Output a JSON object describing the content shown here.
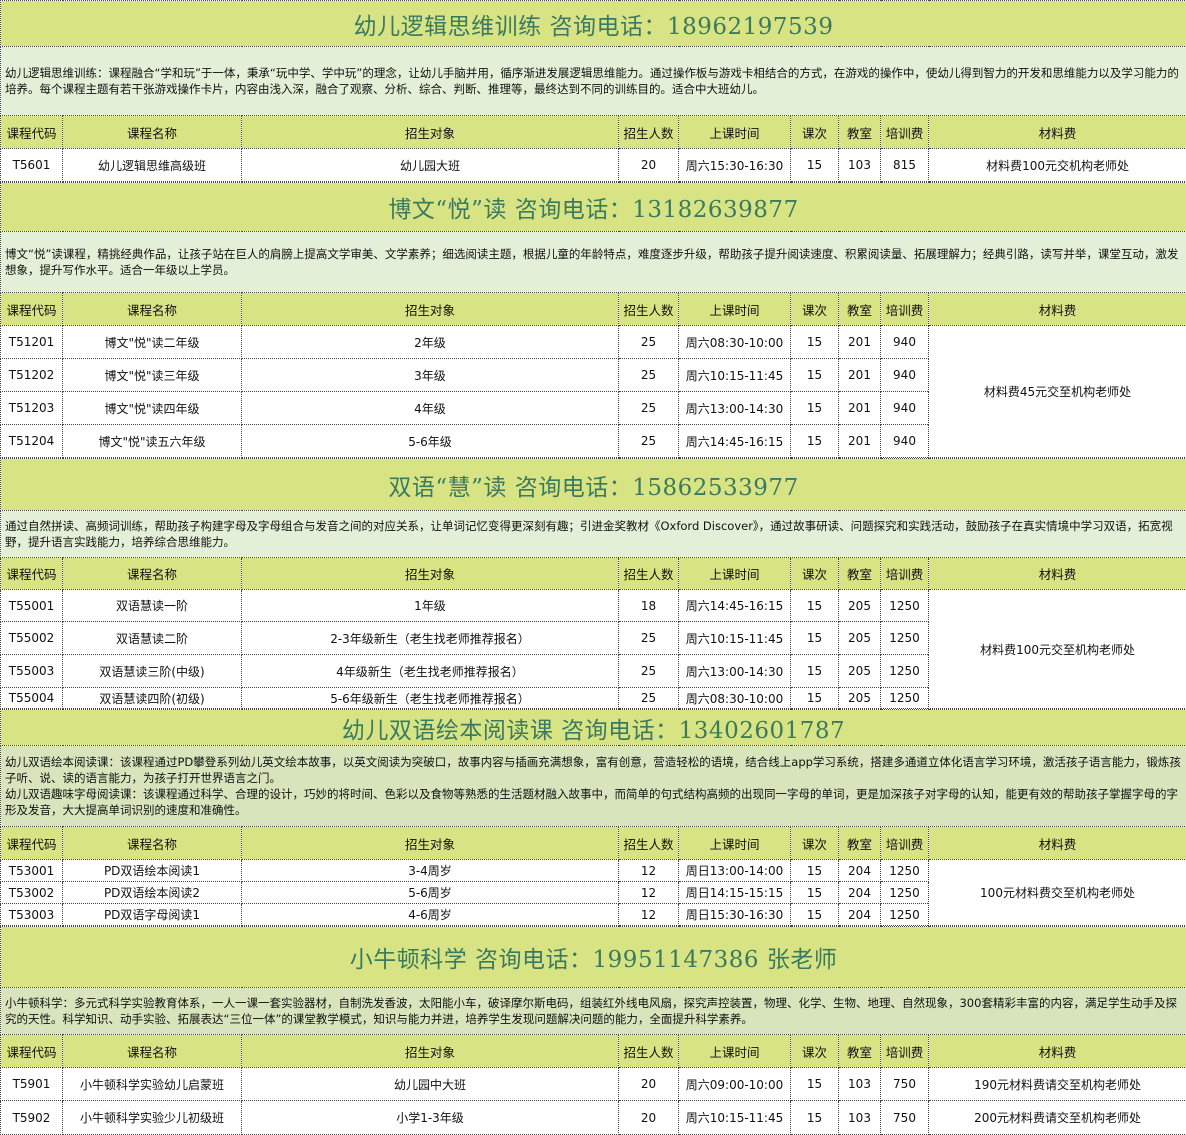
{
  "columns": [
    "课程代码",
    "课程名称",
    "招生对象",
    "招生人数",
    "上课时间",
    "课次",
    "教室",
    "培训费",
    "材料费"
  ],
  "colors": {
    "title_bar": "#d8e484",
    "title_text": "#3a7a60",
    "desc_bg_light": "#e3efd6",
    "desc_bg_dark": "#d8e4bc",
    "header_bg": "#d8e484"
  },
  "sections": [
    {
      "title": "幼儿逻辑思维训练  咨询电话：18962197539",
      "description": [
        "幼儿逻辑思维训练：课程融合“学和玩”于一体，秉承“玩中学、学中玩”的理念，让幼儿手脑并用，循序渐进发展逻辑思维能力。通过操作板与游戏卡相结合的方式，在游戏的操作中，使幼儿得到智力的开发和思维能力以及学习能力的培养。每个课程主题有若干张游戏操作卡片，内容由浅入深，融合了观察、分析、综合、判断、推理等，最终达到不同的训练目的。适合中大班幼儿。"
      ],
      "rows": [
        [
          "T5601",
          "幼儿逻辑思维高级班",
          "幼儿园大班",
          "20",
          "周六15:30-16:30",
          "15",
          "103",
          "815"
        ]
      ],
      "material_fee": "材料费100元交机构老师处"
    },
    {
      "title": "博文“悦”读   咨询电话：13182639877",
      "description": [
        "博文“悦”读课程，精挑经典作品，让孩子站在巨人的肩膀上提高文学审美、文学素养；细选阅读主题，根据儿童的年龄特点，难度逐步升级，帮助孩子提升阅读速度、积累阅读量、拓展理解力；经典引路，读写并举，课堂互动，激发想象，提升写作水平。适合一年级以上学员。"
      ],
      "rows": [
        [
          "T51201",
          "博文\"悦\"读二年级",
          "2年级",
          "25",
          "周六08:30-10:00",
          "15",
          "201",
          "940"
        ],
        [
          "T51202",
          "博文\"悦\"读三年级",
          "3年级",
          "25",
          "周六10:15-11:45",
          "15",
          "201",
          "940"
        ],
        [
          "T51203",
          "博文\"悦\"读四年级",
          "4年级",
          "25",
          "周六13:00-14:30",
          "15",
          "201",
          "940"
        ],
        [
          "T51204",
          "博文\"悦\"读五六年级",
          "5-6年级",
          "25",
          "周六14:45-16:15",
          "15",
          "201",
          "940"
        ]
      ],
      "material_fee": "材料费45元交至机构老师处"
    },
    {
      "title": "双语“慧”读  咨询电话：15862533977",
      "description": [
        "通过自然拼读、高频词训练，帮助孩子构建字母及字母组合与发音之间的对应关系，让单词记忆变得更深刻有趣；引进金奖教材《Oxford Discover》，通过故事研读、问题探究和实践活动，鼓励孩子在真实情境中学习双语，拓宽视野，提升语言实践能力，培养综合思维能力。"
      ],
      "rows": [
        [
          "T55001",
          "双语慧读一阶",
          "1年级",
          "18",
          "周六14:45-16:15",
          "15",
          "205",
          "1250"
        ],
        [
          "T55002",
          "双语慧读二阶",
          "2-3年级新生（老生找老师推荐报名）",
          "25",
          "周六10:15-11:45",
          "15",
          "205",
          "1250"
        ],
        [
          "T55003",
          "双语慧读三阶(中级)",
          "4年级新生（老生找老师推荐报名）",
          "25",
          "周六13:00-14:30",
          "15",
          "205",
          "1250"
        ],
        [
          "T55004",
          "双语慧读四阶(初级)",
          "5-6年级新生（老生找老师推荐报名）",
          "25",
          "周六08:30-10:00",
          "15",
          "205",
          "1250"
        ]
      ],
      "material_fee": "材料费100元交至机构老师处"
    },
    {
      "title": "幼儿双语绘本阅读课  咨询电话：13402601787",
      "description": [
        "幼儿双语绘本阅读课：该课程通过PD攀登系列幼儿英文绘本故事，以英文阅读为突破口，故事内容与插画充满想象，富有创意，营造轻松的语境，结合线上app学习系统，搭建多通道立体化语言学习环境，激活孩子语言能力，锻炼孩子听、说、读的语言能力，为孩子打开世界语言之门。",
        "幼儿双语趣味字母阅读课：该课程通过科学、合理的设计，巧妙的将时间、色彩以及食物等熟悉的生活题材融入故事中，而简单的句式结构高频的出现同一字母的单词，更是加深孩子对字母的认知，能更有效的帮助孩子掌握字母的字形及发音，大大提高单词识别的速度和准确性。"
      ],
      "rows": [
        [
          "T53001",
          "PD双语绘本阅读1",
          "3-4周岁",
          "12",
          "周日13:00-14:00",
          "15",
          "204",
          "1250"
        ],
        [
          "T53002",
          "PD双语绘本阅读2",
          "5-6周岁",
          "12",
          "周日14:15-15:15",
          "15",
          "204",
          "1250"
        ],
        [
          "T53003",
          "PD双语字母阅读1",
          "4-6周岁",
          "12",
          "周日15:30-16:30",
          "15",
          "204",
          "1250"
        ]
      ],
      "material_fee": "100元材料费交至机构老师处"
    },
    {
      "title": "小牛顿科学  咨询电话：19951147386  张老师",
      "description": [
        "小牛顿科学：多元式科学实验教育体系，一人一课一套实验器材，自制洗发香波，太阳能小车，破译摩尔斯电码，组装红外线电风扇，探究声控装置，物理、化学、生物、地理、自然现象，300套精彩丰富的内容，满足学生动手及探究的天性。科学知识、动手实验、拓展表达“三位一体”的课堂教学模式，知识与能力并进，培养学生发现问题解决问题的能力，全面提升科学素养。"
      ],
      "rows": [
        [
          "T5901",
          "小牛顿科学实验幼儿启蒙班",
          "幼儿园中大班",
          "20",
          "周六09:00-10:00",
          "15",
          "103",
          "750",
          "190元材料费请交至机构老师处"
        ],
        [
          "T5902",
          "小牛顿科学实验少儿初级班",
          "小学1-3年级",
          "20",
          "周六10:15-11:45",
          "15",
          "103",
          "750",
          "200元材料费请交至机构老师处"
        ]
      ]
    }
  ]
}
